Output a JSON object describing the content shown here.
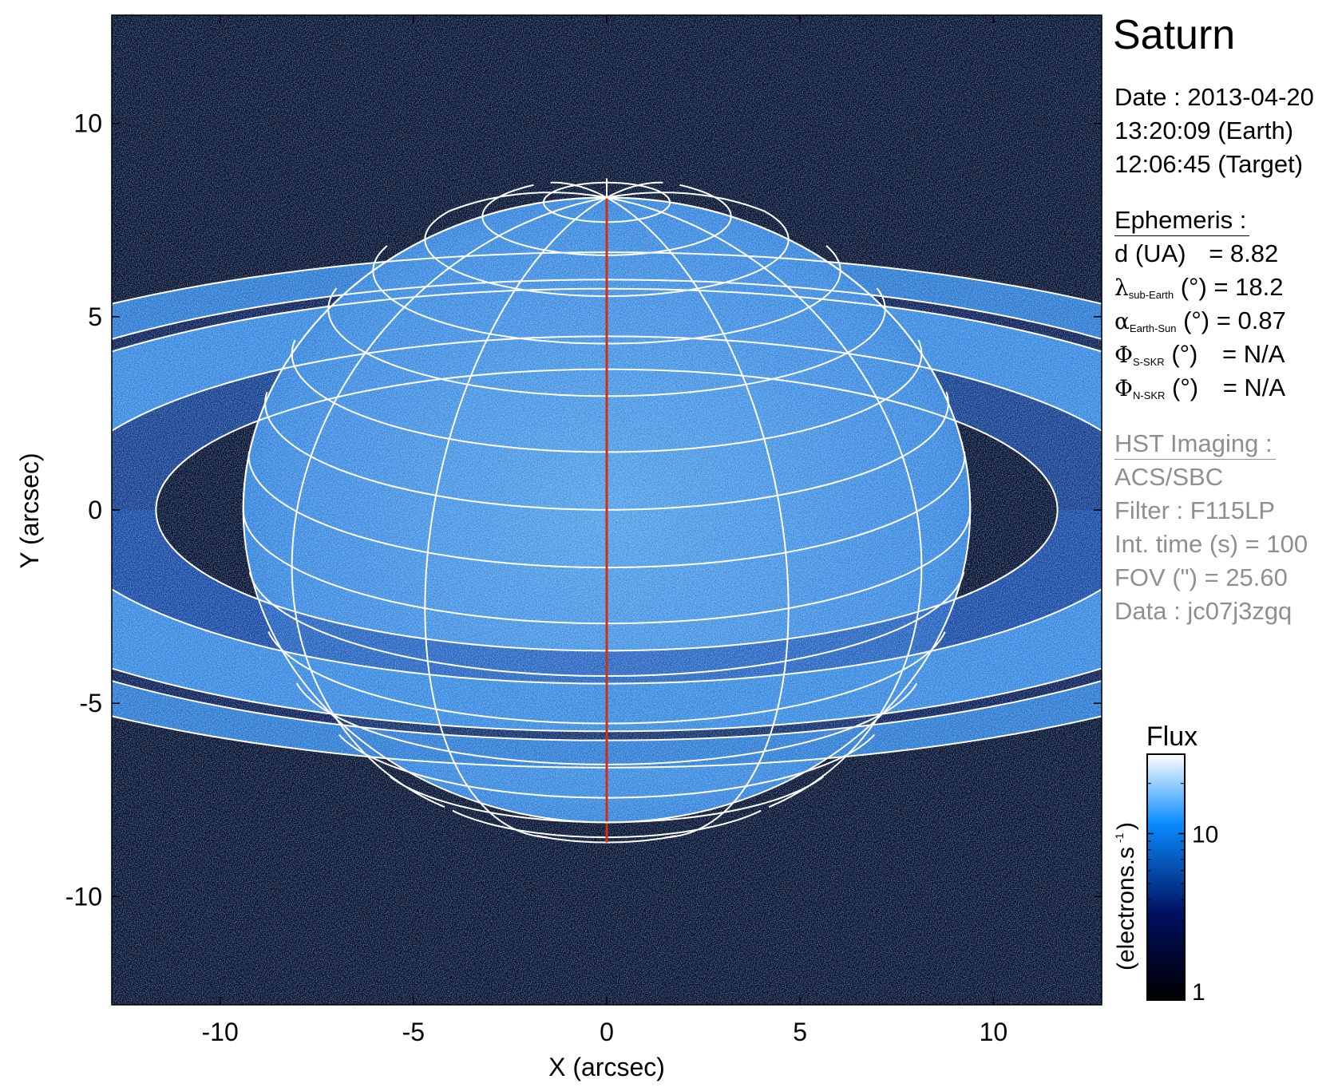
{
  "chart_data": {
    "type": "heatmap",
    "xlabel": "X (arcsec)",
    "ylabel": "Y (arcsec)",
    "xlim": [
      -12.8,
      12.8
    ],
    "ylim": [
      -12.8,
      12.8
    ],
    "xticks": [
      -10,
      -5,
      0,
      5,
      10
    ],
    "yticks": [
      -10,
      -5,
      0,
      5,
      10
    ],
    "xtick_labels": [
      "-10",
      "-5",
      "0",
      "5",
      "10"
    ],
    "ytick_labels": [
      "-10",
      "-5",
      "0",
      "5",
      "10"
    ],
    "grid": false,
    "colormap": [
      "#000000",
      "#001060",
      "#0a8cff",
      "#ffffff"
    ],
    "colorbar": {
      "title": "Flux",
      "label": "(electrons.s",
      "label_sup": "-1",
      "label_close": ")",
      "scale": "log",
      "range": [
        1,
        30
      ],
      "ticks": [
        1,
        10
      ],
      "tick_labels": [
        "1",
        "10"
      ]
    },
    "overlay": {
      "planet_equatorial_radius_arcsec": 9.4,
      "sub_earth_latitude_deg": 18.2,
      "latitude_step_deg": 10,
      "longitude_step_deg": 30,
      "central_meridian_color": "#d03010",
      "grid_color": "#ffffff"
    }
  },
  "info": {
    "title": "Saturn",
    "date_line": "Date : 2013-04-20",
    "earth_time": "13:20:09 (Earth)",
    "target_time": "12:06:45 (Target)",
    "ephemeris_heading": "Ephemeris :",
    "ephemeris": [
      {
        "symbol": "d",
        "sub": "",
        "label": " (UA)",
        "value": "= 8.82"
      },
      {
        "symbol": "λ",
        "sub": "sub-Earth",
        "label": " (°)",
        "value": "= 18.2"
      },
      {
        "symbol": "α",
        "sub": "Earth-Sun",
        "label": " (°)",
        "value": "= 0.87"
      },
      {
        "symbol": "Φ",
        "sub": "S-SKR",
        "label": " (°)",
        "value": "= N/A"
      },
      {
        "symbol": "Φ",
        "sub": "N-SKR",
        "label": " (°)",
        "value": "= N/A"
      }
    ],
    "imaging_heading": "HST Imaging :",
    "imaging": [
      "ACS/SBC",
      "Filter : F115LP",
      "Int. time (s) = 100",
      "FOV (\") = 25.60",
      "Data : jc07j3zgq"
    ]
  }
}
